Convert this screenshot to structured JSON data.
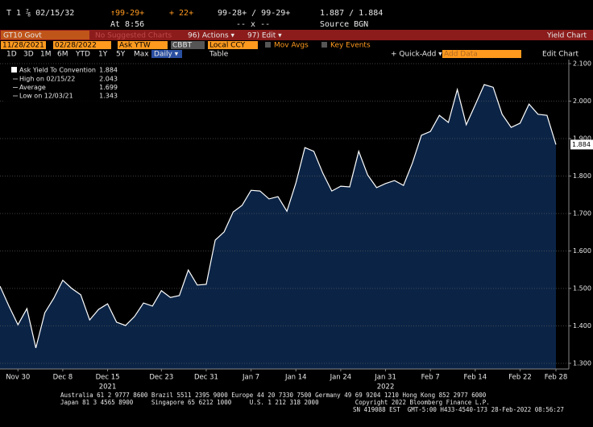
{
  "header": {
    "security": "T 1 ⅞ 02/15/32",
    "change_price": "↑99-29+",
    "change": "+ 22+",
    "bid_ask": "99-28+ / 99-29+",
    "yields": "1.887 / 1.884",
    "time": "At 8:56",
    "size": "-- x --",
    "source": "Source BGN"
  },
  "menu": {
    "ticker": "GT10 Govt",
    "suggested": "No Suggested Charts",
    "actions": "96) Actions ▾",
    "edit": "97) Edit ▾",
    "title": "Yield Chart"
  },
  "toolbar": {
    "start_date": "11/28/2021",
    "end_date": "02/28/2022",
    "field": "Ask YTW",
    "source": "CBBT",
    "currency": "Local CCY",
    "mov_avgs": "Mov Avgs",
    "key_events": "Key Events",
    "periods": [
      "1D",
      "3D",
      "1M",
      "6M",
      "YTD",
      "1Y",
      "5Y",
      "Max"
    ],
    "frequency": "Daily ▾",
    "table": "Table",
    "quick_add": "+ Quick-Add ▾",
    "add_data": "Add Data",
    "edit_chart": "Edit Chart"
  },
  "chart_data": {
    "type": "area",
    "categories": [
      null,
      null,
      "Nov 30",
      null,
      null,
      null,
      null,
      "Dec 8",
      null,
      null,
      null,
      null,
      "Dec 15",
      null,
      null,
      null,
      null,
      null,
      "Dec 23",
      null,
      null,
      null,
      null,
      "Dec 31",
      null,
      null,
      null,
      null,
      "Jan 7",
      null,
      null,
      null,
      null,
      "Jan 14",
      null,
      null,
      null,
      null,
      "Jan 24",
      null,
      null,
      null,
      null,
      "Jan 31",
      null,
      null,
      null,
      null,
      "Feb 7",
      null,
      null,
      null,
      null,
      "Feb 14",
      null,
      null,
      null,
      null,
      "Feb 22",
      null,
      null,
      null,
      "Feb 28"
    ],
    "series": [
      {
        "name": "Ask Yield To Convention",
        "color": "#ffffff",
        "fill": "#0b2446",
        "values": [
          1.506,
          1.453,
          1.403,
          1.446,
          1.341,
          1.435,
          1.474,
          1.522,
          1.5,
          1.483,
          1.416,
          1.444,
          1.459,
          1.41,
          1.401,
          1.425,
          1.461,
          1.453,
          1.494,
          1.476,
          1.481,
          1.549,
          1.509,
          1.511,
          1.629,
          1.651,
          1.704,
          1.722,
          1.762,
          1.76,
          1.739,
          1.745,
          1.706,
          1.782,
          1.876,
          1.866,
          1.808,
          1.76,
          1.773,
          1.771,
          1.866,
          1.803,
          1.769,
          1.78,
          1.788,
          1.775,
          1.835,
          1.909,
          1.919,
          1.962,
          1.943,
          2.031,
          1.937,
          1.99,
          2.044,
          2.037,
          1.965,
          1.93,
          1.941,
          1.992,
          1.965,
          1.962,
          1.884
        ]
      }
    ],
    "last_value": 1.884,
    "stats": [
      {
        "label": "High on 02/15/22",
        "value": 2.043
      },
      {
        "label": "Average",
        "value": 1.699
      },
      {
        "label": "Low on 12/03/21",
        "value": 1.343
      }
    ],
    "year_labels": [
      {
        "text": "2021",
        "at": "Dec 15"
      },
      {
        "text": "2022",
        "at": "Jan 31"
      }
    ],
    "ylim": [
      1.3,
      2.1
    ],
    "yticks": [
      {
        "value": 1.3,
        "label": "1.300"
      },
      {
        "value": 1.4,
        "label": "1.400"
      },
      {
        "value": 1.5,
        "label": "1.500"
      },
      {
        "value": 1.6,
        "label": "1.600"
      },
      {
        "value": 1.7,
        "label": "1.700"
      },
      {
        "value": 1.8,
        "label": "1.800"
      },
      {
        "value": 1.9,
        "label": "1.900"
      },
      {
        "value": 2.0,
        "label": "2.000"
      },
      {
        "value": 2.1,
        "label": "2.100"
      }
    ],
    "grid": true
  },
  "footer": {
    "lines": [
      "Australia 61 2 9777 8600 Brazil 5511 2395 9000 Europe 44 20 7330 7500 Germany 49 69 9204 1210 Hong Kong 852 2977 6000",
      "Japan 81 3 4565 8900     Singapore 65 6212 1000     U.S. 1 212 318 2000          Copyright 2022 Bloomberg Finance L.P.",
      "SN 419088 EST  GMT-5:00 H433-4540-173 28-Feb-2022 08:56:27"
    ]
  }
}
